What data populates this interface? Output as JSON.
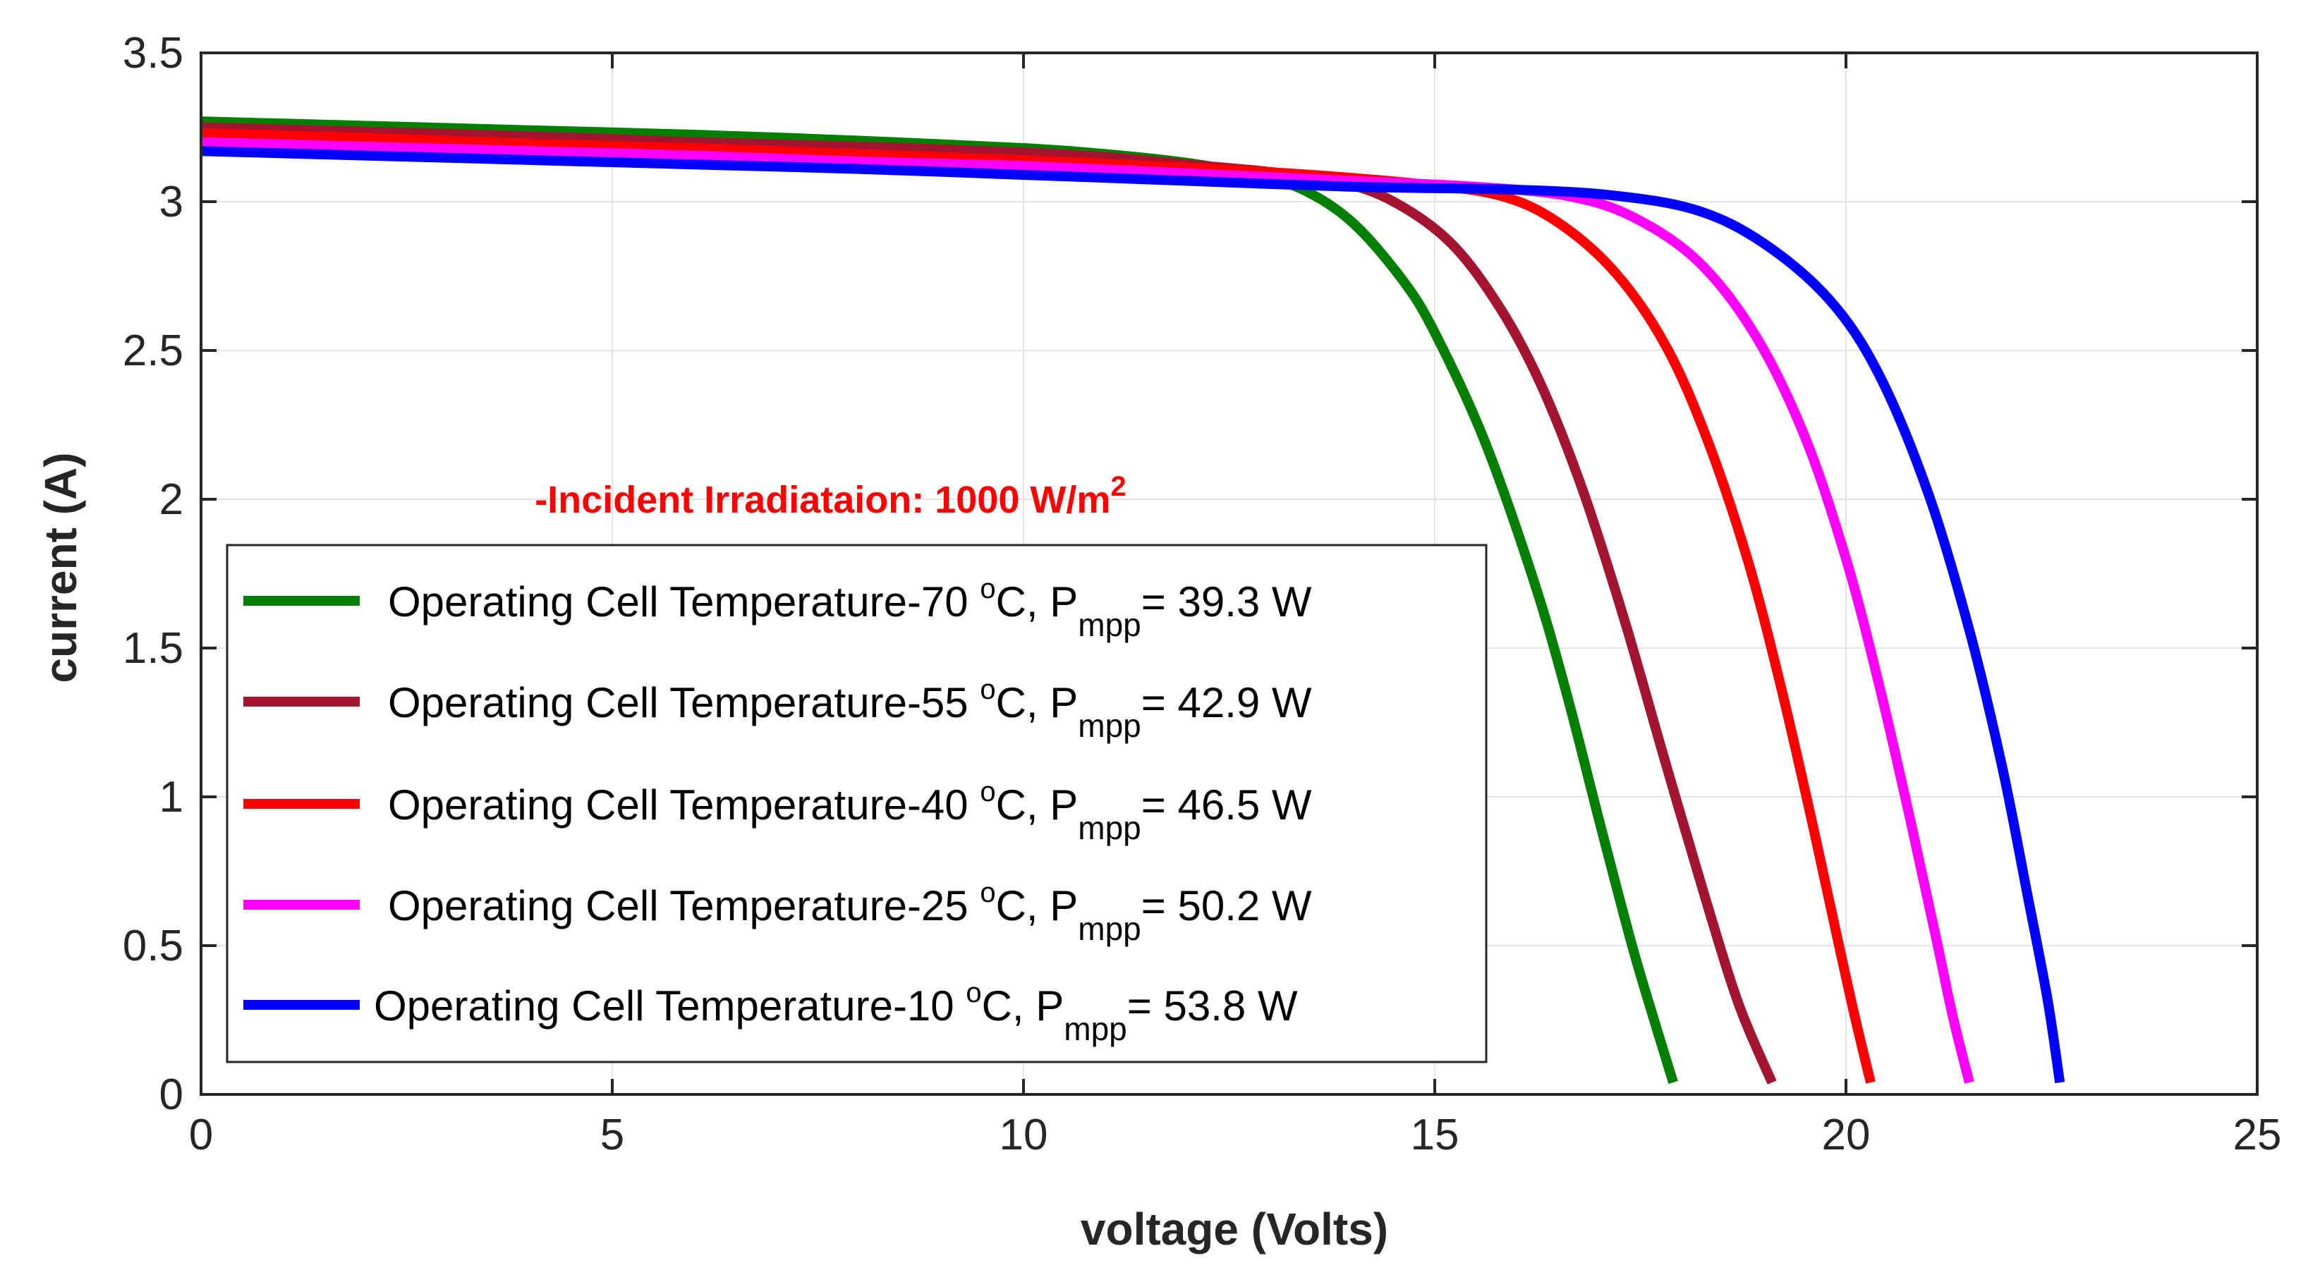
{
  "chart_data": {
    "type": "line",
    "xlabel": "voltage (Volts)",
    "ylabel": "current (A)",
    "xlim": [
      0,
      25
    ],
    "ylim": [
      0,
      3.5
    ],
    "xticks": [
      "0",
      "5",
      "10",
      "15",
      "20",
      "25"
    ],
    "yticks": [
      "0",
      "0.5",
      "1",
      "1.5",
      "2",
      "2.5",
      "3",
      "3.5"
    ],
    "grid": true,
    "annotation": {
      "prefix": "-Incident Irradiataion: 1000 W/m",
      "sup": "2",
      "color": "#ff0000",
      "at": [
        2,
        2.05
      ]
    },
    "legend_placement": "bottom-left",
    "series": [
      {
        "name_main": "Operating Cell Temperature-70 ",
        "name_sup": "o",
        "name_mid": "C, P",
        "name_sub": "mpp",
        "name_tail": "= 39.3 W",
        "color": "#007f00",
        "points": [
          [
            0,
            3.27
          ],
          [
            2,
            3.255
          ],
          [
            4,
            3.24
          ],
          [
            6,
            3.225
          ],
          [
            8,
            3.205
          ],
          [
            10,
            3.18
          ],
          [
            11,
            3.16
          ],
          [
            12,
            3.13
          ],
          [
            12.8,
            3.09
          ],
          [
            13.4,
            3.04
          ],
          [
            14,
            2.93
          ],
          [
            14.6,
            2.74
          ],
          [
            15,
            2.56
          ],
          [
            15.6,
            2.2
          ],
          [
            16.2,
            1.73
          ],
          [
            16.6,
            1.35
          ],
          [
            17,
            0.92
          ],
          [
            17.4,
            0.5
          ],
          [
            17.7,
            0.22
          ],
          [
            17.9,
            0.04
          ]
        ]
      },
      {
        "name_main": "Operating Cell Temperature-55 ",
        "name_sup": "o",
        "name_mid": "C, P",
        "name_sub": "mpp",
        "name_tail": "= 42.9 W",
        "color": "#a2142f",
        "points": [
          [
            0,
            3.25
          ],
          [
            2,
            3.235
          ],
          [
            4,
            3.22
          ],
          [
            6,
            3.2
          ],
          [
            8,
            3.185
          ],
          [
            10,
            3.165
          ],
          [
            11,
            3.15
          ],
          [
            12,
            3.125
          ],
          [
            13,
            3.1
          ],
          [
            13.8,
            3.07
          ],
          [
            14.5,
            3.0
          ],
          [
            15.2,
            2.86
          ],
          [
            15.8,
            2.64
          ],
          [
            16.3,
            2.38
          ],
          [
            16.8,
            2.03
          ],
          [
            17.3,
            1.6
          ],
          [
            17.8,
            1.12
          ],
          [
            18.3,
            0.65
          ],
          [
            18.7,
            0.3
          ],
          [
            19.1,
            0.04
          ]
        ]
      },
      {
        "name_main": "Operating Cell Temperature-40 ",
        "name_sup": "o",
        "name_mid": "C, P",
        "name_sub": "mpp",
        "name_tail": "= 46.5 W",
        "color": "#ff0000",
        "points": [
          [
            0,
            3.23
          ],
          [
            2,
            3.215
          ],
          [
            4,
            3.195
          ],
          [
            6,
            3.18
          ],
          [
            8,
            3.16
          ],
          [
            10,
            3.14
          ],
          [
            12,
            3.115
          ],
          [
            13.5,
            3.09
          ],
          [
            14.8,
            3.06
          ],
          [
            15.8,
            3.02
          ],
          [
            16.5,
            2.93
          ],
          [
            17.2,
            2.76
          ],
          [
            17.8,
            2.52
          ],
          [
            18.3,
            2.21
          ],
          [
            18.8,
            1.8
          ],
          [
            19.2,
            1.38
          ],
          [
            19.6,
            0.9
          ],
          [
            19.9,
            0.52
          ],
          [
            20.1,
            0.27
          ],
          [
            20.3,
            0.04
          ]
        ]
      },
      {
        "name_main": "Operating Cell Temperature-25 ",
        "name_sup": "o",
        "name_mid": "C, P",
        "name_sub": "mpp",
        "name_tail": "= 50.2 W",
        "color": "#ff00ff",
        "points": [
          [
            0,
            3.2
          ],
          [
            2,
            3.185
          ],
          [
            4,
            3.17
          ],
          [
            6,
            3.155
          ],
          [
            8,
            3.135
          ],
          [
            10,
            3.12
          ],
          [
            12,
            3.095
          ],
          [
            14,
            3.07
          ],
          [
            15.5,
            3.05
          ],
          [
            16.6,
            3.02
          ],
          [
            17.4,
            2.95
          ],
          [
            18.2,
            2.8
          ],
          [
            18.9,
            2.55
          ],
          [
            19.5,
            2.21
          ],
          [
            20,
            1.8
          ],
          [
            20.4,
            1.38
          ],
          [
            20.8,
            0.9
          ],
          [
            21.1,
            0.52
          ],
          [
            21.3,
            0.26
          ],
          [
            21.5,
            0.04
          ]
        ]
      },
      {
        "name_main": "Operating Cell Temperature-10 ",
        "name_sup": "o",
        "name_mid": "C, P",
        "name_sub": "mpp",
        "name_tail": "= 53.8 W",
        "color": "#0000ff",
        "points": [
          [
            0,
            3.17
          ],
          [
            2,
            3.155
          ],
          [
            4,
            3.14
          ],
          [
            6,
            3.125
          ],
          [
            8,
            3.11
          ],
          [
            10,
            3.09
          ],
          [
            12,
            3.07
          ],
          [
            14,
            3.05
          ],
          [
            16,
            3.04
          ],
          [
            17.2,
            3.02
          ],
          [
            18.2,
            2.97
          ],
          [
            19,
            2.86
          ],
          [
            19.8,
            2.67
          ],
          [
            20.4,
            2.42
          ],
          [
            21,
            2.02
          ],
          [
            21.5,
            1.56
          ],
          [
            21.9,
            1.1
          ],
          [
            22.2,
            0.68
          ],
          [
            22.45,
            0.32
          ],
          [
            22.6,
            0.04
          ]
        ]
      }
    ]
  }
}
